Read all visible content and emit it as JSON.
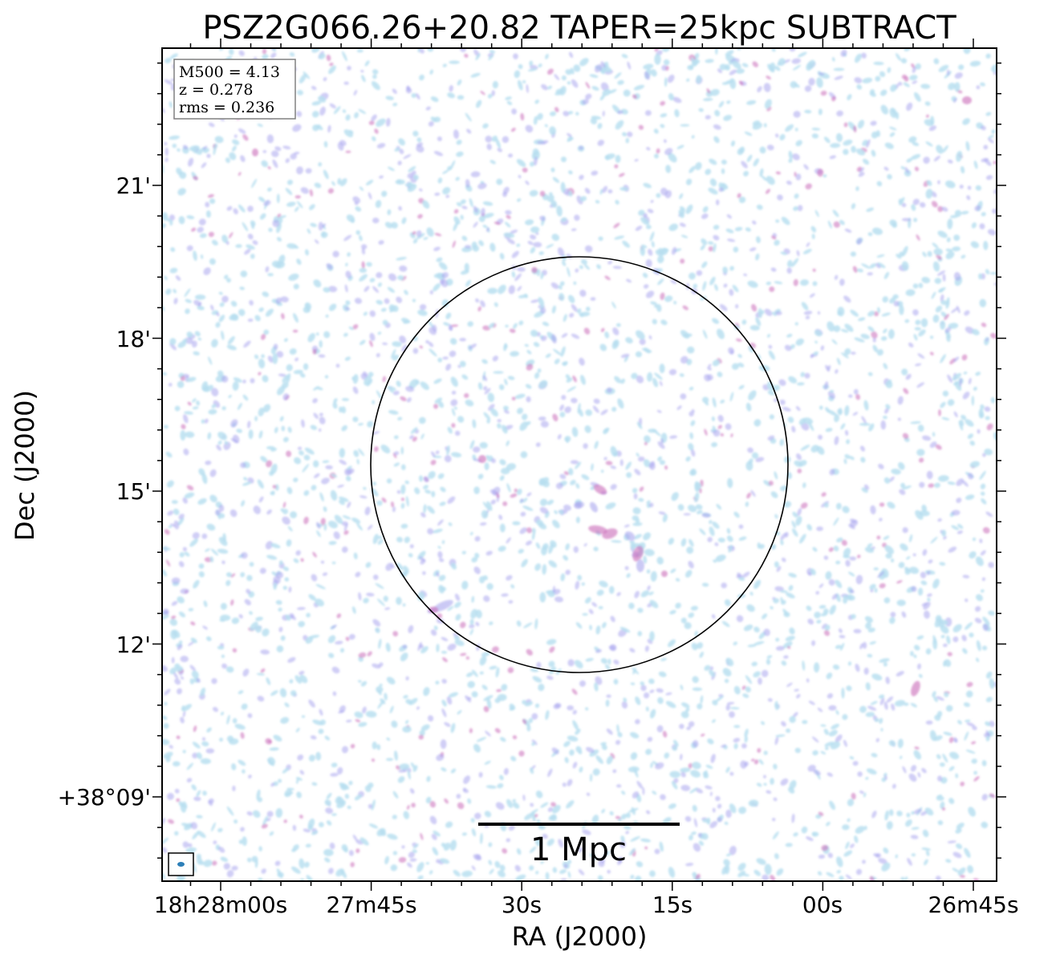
{
  "chart_data": {
    "type": "heatmap",
    "title": "PSZ2G066.26+20.82 TAPER=25kpc SUBTRACT",
    "xlabel": "RA (J2000)",
    "ylabel": "Dec (J2000)",
    "x_ticks": [
      "18h28m00s",
      "27m45s",
      "30s",
      "15s",
      "00s",
      "26m45s"
    ],
    "y_ticks": [
      "+38°09'",
      "12'",
      "15'",
      "18'",
      "21'"
    ],
    "info": {
      "m500": "M500 = 4.13",
      "z": "z = 0.278",
      "rms": "rms = 0.236"
    },
    "scale_bar_label": "1 Mpc",
    "grid": false,
    "colors": {
      "low": "#b8dff0",
      "mid": "#a9a6ee",
      "high": "#c96ab8",
      "beam": "#2d7fb8",
      "frame": "#000000",
      "info_box_edge": "#808080"
    }
  }
}
